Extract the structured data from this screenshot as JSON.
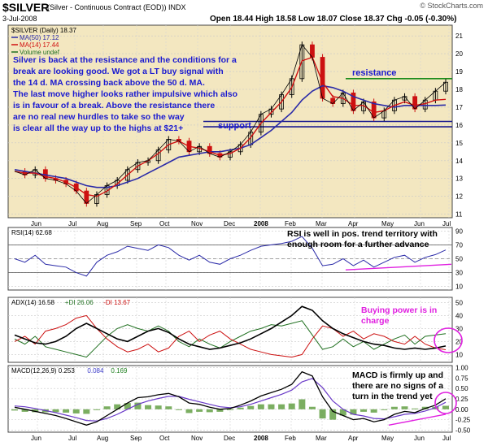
{
  "header": {
    "title": "$SILVER",
    "subtitle": "(Silver - Continuous Contract (EOD))  INDX",
    "date": "3-Jul-2008",
    "ohlc": "Open 18.44  High 18.58  Low 18.07  Close 18.37  Chg -0.05 (-0.30%)",
    "brand": "© StockCharts.com"
  },
  "colors": {
    "price_bg": "#f3e7c0",
    "panel_bg": "#ffffff",
    "ma50": "#2a2aa8",
    "ma14": "#d01010",
    "up_candle": "#000000",
    "down_candle": "#cc1111",
    "annotation": "#1a1ad0",
    "highlight": "#e020e0",
    "resistance": "#1a8a1a"
  },
  "chart_data": [
    {
      "type": "line",
      "panel": "price",
      "legend": [
        "$SILVER (Daily) 18.37",
        "MA(50) 17.12",
        "MA(14) 17.44",
        "Volume undef"
      ],
      "x_ticks": [
        "Jun",
        "Jul",
        "Aug",
        "Sep",
        "Oct",
        "Nov",
        "Dec",
        "2008",
        "Feb",
        "Mar",
        "Apr",
        "May",
        "Jun",
        "Jul"
      ],
      "y_ticks": [
        11,
        12,
        13,
        14,
        15,
        16,
        17,
        18,
        19,
        20,
        21
      ],
      "ylim": [
        10.8,
        21.6
      ],
      "series": [
        {
          "name": "$SILVER (Daily)",
          "values": [
            13.4,
            13.2,
            13.5,
            13.0,
            12.9,
            12.7,
            12.3,
            11.6,
            12.1,
            12.6,
            12.9,
            13.5,
            13.9,
            14.0,
            14.6,
            15.2,
            15.1,
            14.5,
            14.8,
            14.4,
            14.2,
            14.5,
            14.9,
            15.6,
            16.6,
            16.9,
            17.7,
            18.6,
            20.5,
            19.8,
            17.5,
            17.2,
            17.8,
            16.8,
            17.3,
            16.4,
            16.8,
            17.4,
            17.6,
            16.9,
            17.4,
            17.9,
            18.4
          ]
        },
        {
          "name": "MA(50)",
          "values": [
            13.5,
            13.4,
            13.3,
            13.2,
            13.1,
            13.0,
            12.8,
            12.6,
            12.5,
            12.5,
            12.6,
            12.8,
            13.0,
            13.3,
            13.6,
            13.9,
            14.2,
            14.3,
            14.4,
            14.5,
            14.5,
            14.6,
            14.7,
            14.9,
            15.3,
            15.7,
            16.2,
            16.7,
            17.4,
            17.9,
            18.2,
            18.1,
            17.9,
            17.6,
            17.4,
            17.2,
            17.1,
            17.0,
            17.1,
            17.1,
            17.1,
            17.1,
            17.12
          ]
        },
        {
          "name": "MA(14)",
          "values": [
            13.4,
            13.3,
            13.3,
            13.1,
            13.0,
            12.8,
            12.5,
            12.1,
            12.0,
            12.3,
            12.7,
            13.2,
            13.7,
            14.0,
            14.4,
            14.9,
            15.1,
            14.8,
            14.7,
            14.5,
            14.3,
            14.4,
            14.7,
            15.3,
            16.1,
            16.7,
            17.3,
            18.1,
            19.6,
            19.8,
            18.4,
            17.6,
            17.5,
            17.1,
            17.1,
            16.7,
            16.8,
            17.1,
            17.3,
            17.1,
            17.2,
            17.4,
            17.44
          ]
        }
      ],
      "levels": [
        {
          "name": "resistance",
          "value": 18.6
        },
        {
          "name": "support",
          "value": 16.2
        },
        {
          "name": "",
          "value": 15.9
        }
      ],
      "annotations": [
        "resistance",
        "support"
      ]
    },
    {
      "type": "line",
      "panel": "rsi",
      "legend": [
        "RSI(14) 62.68"
      ],
      "y_ticks": [
        10,
        30,
        50,
        70,
        90
      ],
      "ylim": [
        5,
        95
      ],
      "series": [
        {
          "name": "RSI(14)",
          "values": [
            50,
            45,
            55,
            42,
            40,
            38,
            30,
            25,
            45,
            55,
            60,
            68,
            65,
            62,
            70,
            66,
            55,
            48,
            55,
            45,
            42,
            50,
            55,
            62,
            68,
            70,
            72,
            75,
            82,
            65,
            40,
            42,
            50,
            40,
            48,
            38,
            45,
            52,
            55,
            45,
            52,
            56,
            62.68
          ]
        }
      ]
    },
    {
      "type": "line",
      "panel": "adx",
      "legend": [
        "ADX(14) 16.58",
        "+DI 26.06",
        "-DI 13.67"
      ],
      "y_ticks": [
        10,
        20,
        30,
        40,
        50
      ],
      "ylim": [
        4,
        54
      ],
      "series": [
        {
          "name": "ADX(14)",
          "values": [
            25,
            22,
            19,
            18,
            20,
            24,
            30,
            34,
            30,
            26,
            22,
            20,
            24,
            28,
            30,
            27,
            22,
            18,
            16,
            14,
            15,
            17,
            19,
            22,
            26,
            30,
            35,
            40,
            47,
            44,
            36,
            30,
            26,
            23,
            20,
            18,
            17,
            15,
            14,
            15,
            14,
            15,
            16.58
          ]
        },
        {
          "name": "+DI",
          "values": [
            22,
            18,
            24,
            16,
            14,
            12,
            10,
            8,
            16,
            24,
            30,
            33,
            30,
            28,
            32,
            28,
            20,
            16,
            22,
            18,
            15,
            20,
            24,
            28,
            30,
            33,
            32,
            34,
            36,
            25,
            14,
            16,
            22,
            16,
            20,
            14,
            18,
            22,
            25,
            18,
            24,
            25,
            26.06
          ]
        },
        {
          "name": "-DI",
          "values": [
            20,
            24,
            18,
            28,
            30,
            33,
            38,
            40,
            30,
            22,
            16,
            12,
            14,
            18,
            12,
            15,
            24,
            28,
            20,
            25,
            28,
            22,
            18,
            14,
            12,
            10,
            9,
            8,
            10,
            22,
            32,
            30,
            24,
            28,
            22,
            26,
            24,
            20,
            18,
            24,
            18,
            15,
            13.67
          ]
        }
      ]
    },
    {
      "type": "line",
      "panel": "macd",
      "legend": [
        "MACD(12,26,9) 0.253",
        "0.084",
        "0.169"
      ],
      "y_ticks": [
        -0.5,
        -0.25,
        0.0,
        0.25,
        0.5,
        0.75,
        1.0
      ],
      "ylim": [
        -0.55,
        1.05
      ],
      "series": [
        {
          "name": "MACD(12,26,9)",
          "values": [
            0.05,
            0.0,
            -0.05,
            -0.1,
            -0.15,
            -0.22,
            -0.3,
            -0.38,
            -0.3,
            -0.15,
            0.0,
            0.15,
            0.28,
            0.3,
            0.35,
            0.38,
            0.3,
            0.15,
            0.12,
            0.05,
            0.0,
            0.02,
            0.1,
            0.2,
            0.32,
            0.4,
            0.48,
            0.6,
            0.9,
            0.8,
            0.3,
            -0.05,
            -0.15,
            -0.25,
            -0.22,
            -0.3,
            -0.25,
            -0.12,
            -0.05,
            -0.08,
            0.02,
            0.1,
            0.253
          ]
        },
        {
          "name": "signal",
          "values": [
            0.08,
            0.06,
            0.02,
            -0.03,
            -0.08,
            -0.14,
            -0.2,
            -0.27,
            -0.28,
            -0.22,
            -0.12,
            0.0,
            0.12,
            0.2,
            0.26,
            0.31,
            0.31,
            0.24,
            0.18,
            0.12,
            0.06,
            0.04,
            0.06,
            0.12,
            0.2,
            0.28,
            0.36,
            0.46,
            0.66,
            0.74,
            0.52,
            0.2,
            0.0,
            -0.12,
            -0.16,
            -0.22,
            -0.23,
            -0.18,
            -0.12,
            -0.1,
            -0.04,
            0.04,
            0.169
          ]
        }
      ]
    }
  ],
  "notes": {
    "price_note": [
      "Silver is back at the resistance and the conditions for a",
      "break are looking good. We got a LT buy signal with",
      "the 14 d. MA crossing back above the 50 d. MA.",
      "The last move higher looks rather impulsive which also",
      "is in favour of a break. Above the resistance there",
      "are no real new hurdles to take so the way",
      "is clear all the way up to the highs at $21+"
    ],
    "rsi_note": [
      "RSI is well in pos. trend territory with",
      "enough room for a further advance"
    ],
    "adx_note": [
      "Buying power is in",
      "charge"
    ],
    "macd_note": [
      "MACD is firmly up and",
      "there are no signs of a",
      "turn in the trend yet"
    ]
  }
}
